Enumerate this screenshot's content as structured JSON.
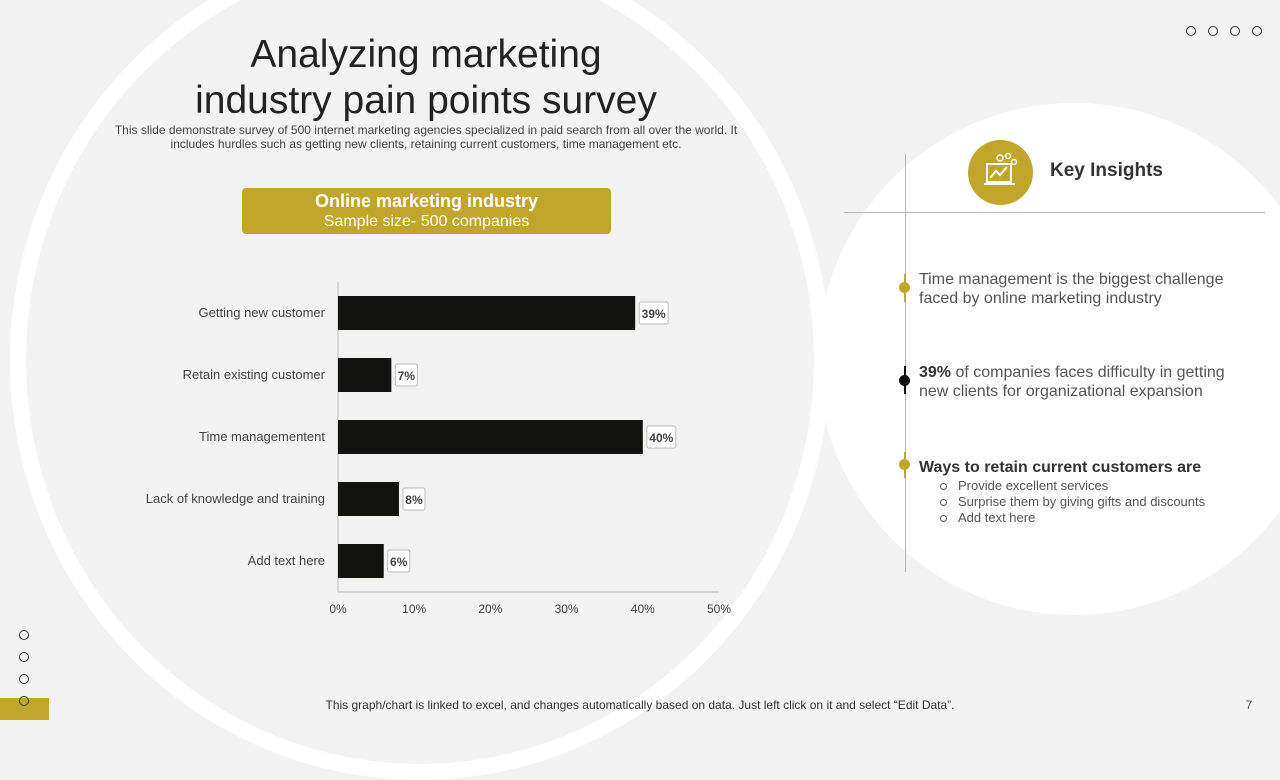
{
  "slide": {
    "title_line1": "Analyzing marketing",
    "title_line2": "industry pain points survey",
    "subtitle": "This slide demonstrate survey of 500 internet marketing agencies specialized in paid search from all over the world. It includes hurdles such as getting new clients, retaining current customers, time management etc.",
    "sample_title": "Online marketing industry",
    "sample_sub": "Sample size- 500 companies",
    "footer_note": "This graph/chart is linked to excel, and changes automatically based on data. Just left click on it and select “Edit Data”.",
    "page_number": "7"
  },
  "colors": {
    "accent": "#c2a62b",
    "bar": "#12120e",
    "background": "#f3f3f3"
  },
  "chart_data": {
    "type": "bar",
    "orientation": "horizontal",
    "title": "",
    "categories": [
      "Getting new customer",
      "Retain existing customer",
      "Time managementent",
      "Lack of knowledge and training",
      "Add text here"
    ],
    "values": [
      39,
      7,
      40,
      8,
      6
    ],
    "data_labels": [
      "39%",
      "7%",
      "40%",
      "8%",
      "6%"
    ],
    "xlim": [
      0,
      50
    ],
    "x_ticks": [
      0,
      10,
      20,
      30,
      40,
      50
    ],
    "x_tick_labels": [
      "0%",
      "10%",
      "20%",
      "30%",
      "40%",
      "50%"
    ],
    "xlabel": "",
    "ylabel": "",
    "grid": false
  },
  "insights": {
    "title": "Key Insights",
    "icon": "presentation-board-icon",
    "items": [
      {
        "text": "Time management is the biggest challenge faced by online marketing industry"
      },
      {
        "highlight": "39%",
        "text": " of companies faces difficulty in getting new clients for organizational expansion"
      }
    ],
    "ways_title": "Ways to retain current customers are",
    "ways": [
      "Provide excellent services",
      "Surprise them by giving gifts and discounts",
      "Add text here"
    ]
  }
}
